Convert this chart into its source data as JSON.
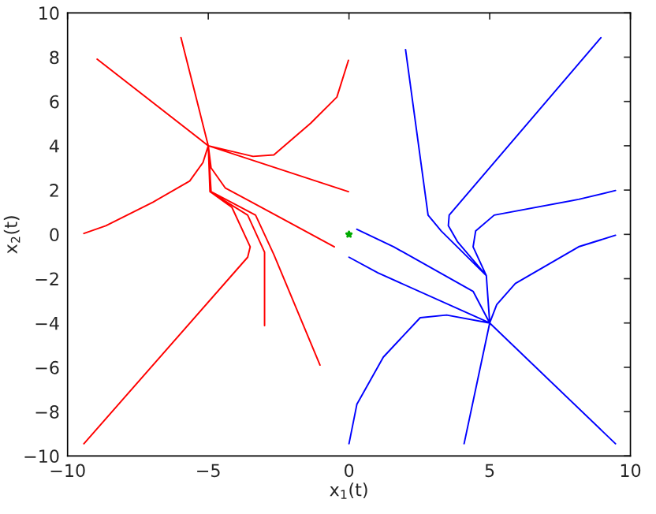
{
  "chart_data": {
    "type": "line",
    "xlabel": "x$_{1}$(t)",
    "ylabel": "x$_{2}$(t)",
    "xlim": [
      -10,
      10
    ],
    "ylim": [
      -10,
      10
    ],
    "xticks": [
      {
        "value": -10,
        "label": "−10"
      },
      {
        "value": -5,
        "label": "−5"
      },
      0,
      5,
      10
    ],
    "yticks": [
      {
        "value": -10,
        "label": "−10"
      },
      {
        "value": -8,
        "label": "−8"
      },
      {
        "value": -6,
        "label": "−6"
      },
      {
        "value": -4,
        "label": "−4"
      },
      {
        "value": -2,
        "label": "−2"
      },
      0,
      2,
      4,
      6,
      8,
      10
    ],
    "grid": false,
    "legend": false,
    "series": [
      {
        "color": "#ff0000",
        "x": [
          -8.95,
          -5,
          null,
          -5.97,
          -5,
          null,
          -0.02,
          -0.43,
          -1.36,
          -2.67,
          -3.41,
          -5,
          null,
          -0.02,
          -5,
          null,
          -0.52,
          -2.5,
          -4.4,
          -4.9,
          -5,
          null,
          -9.42,
          -8.64,
          -6.96,
          -5.66,
          -5.19,
          -5,
          null,
          -9.42,
          -3.6,
          -3.51,
          -4.16,
          -4.94,
          -5,
          null,
          -3.0,
          -3.0,
          -3.6,
          -4.94,
          -5,
          null,
          -1.03,
          -2.67,
          -3.32,
          -4.9,
          -5
        ],
        "values": [
          7.91,
          4,
          null,
          8.88,
          4,
          null,
          7.86,
          6.2,
          5.02,
          3.59,
          3.52,
          4,
          null,
          1.93,
          4,
          null,
          -0.56,
          0.8,
          2.1,
          3.0,
          4,
          null,
          0.04,
          0.39,
          1.46,
          2.41,
          3.24,
          4,
          null,
          -9.45,
          -1.03,
          -0.56,
          1.22,
          1.93,
          4,
          null,
          -4.12,
          -0.8,
          0.87,
          1.93,
          4,
          null,
          -5.9,
          -0.91,
          0.87,
          1.93,
          4
        ]
      },
      {
        "color": "#0000ff",
        "x": [
          2.01,
          2.81,
          3.28,
          4.88,
          5.0,
          null,
          8.95,
          3.56,
          3.53,
          3.85,
          4.88,
          5.0,
          null,
          9.47,
          8.16,
          5.16,
          4.5,
          4.41,
          4.88,
          5.0,
          null,
          9.47,
          8.16,
          5.91,
          5.25,
          5.0,
          null,
          0.28,
          1.59,
          4.41,
          5.0,
          null,
          0,
          1.03,
          5.0,
          null,
          9.47,
          5.0,
          null,
          4.09,
          5.0,
          null,
          0,
          0.28,
          1.22,
          2.53,
          3.47,
          5.0
        ],
        "values": [
          8.34,
          0.87,
          0.15,
          -1.86,
          -4,
          null,
          8.88,
          0.87,
          0.39,
          -0.32,
          -1.86,
          -4,
          null,
          1.98,
          1.58,
          0.87,
          0.15,
          -0.56,
          -1.86,
          -4,
          null,
          -0.04,
          -0.56,
          -2.22,
          -3.17,
          -4,
          null,
          0.23,
          -0.56,
          -2.57,
          -4,
          null,
          -1.03,
          -1.74,
          -4,
          null,
          -9.45,
          -4,
          null,
          -9.45,
          -4,
          null,
          -9.45,
          -7.67,
          -5.54,
          -3.76,
          -3.64,
          -4
        ]
      },
      {
        "type": "scatter",
        "color": "#00aa00",
        "x": [
          0
        ],
        "values": [
          0
        ]
      }
    ]
  }
}
